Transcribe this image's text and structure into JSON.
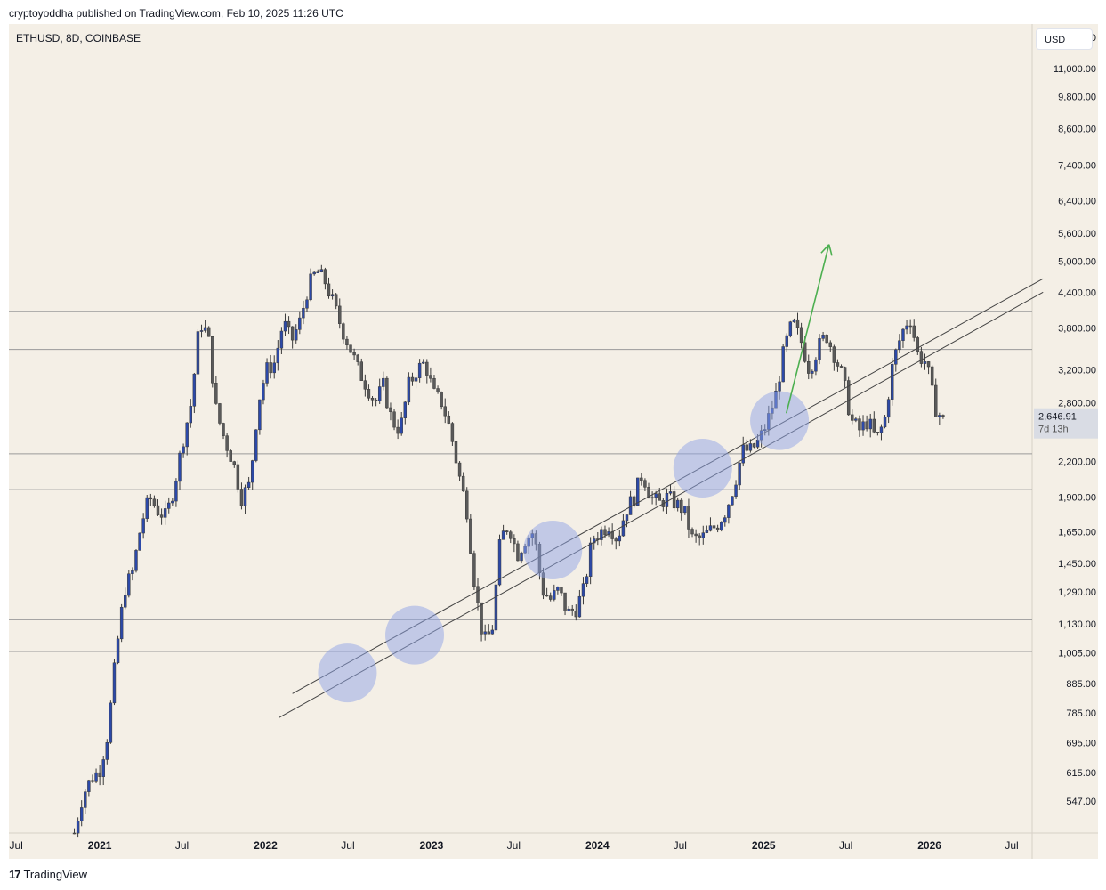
{
  "header": {
    "text": "cryptoyoddha published on TradingView.com, Feb 10, 2025 11:26 UTC"
  },
  "footer": {
    "brand": "TradingView",
    "logo_mark": "17"
  },
  "colors": {
    "background": "#f4efe6",
    "candle": "#2c49a8",
    "level_line": "#9a9a9a",
    "trend_line": "#444444",
    "arrow": "#4caf50",
    "circle_fill": "#8fa4e6"
  },
  "chart_data": {
    "type": "candlestick",
    "symbol_label": "ETHUSD, 8D, COINBASE",
    "currency": "USD",
    "y_scale": "log",
    "ylim": [
      480,
      13200
    ],
    "x_range": [
      "2020-06-15",
      "2026-08-15"
    ],
    "y_ticks": [
      "12,500.00",
      "11,000.00",
      "9,800.00",
      "8,600.00",
      "7,400.00",
      "6,400.00",
      "5,600.00",
      "5,000.00",
      "4,400.00",
      "3,800.00",
      "3,200.00",
      "2,800.00",
      "2,200.00",
      "1,900.00",
      "1,650.00",
      "1,450.00",
      "1,290.00",
      "1,130.00",
      "1,005.00",
      "885.00",
      "785.00",
      "695.00",
      "615.00",
      "547.00"
    ],
    "x_ticks": [
      {
        "date": "2020-07-01",
        "label": "Jul",
        "bold": false
      },
      {
        "date": "2021-01-01",
        "label": "2021",
        "bold": true
      },
      {
        "date": "2021-07-01",
        "label": "Jul",
        "bold": false
      },
      {
        "date": "2022-01-01",
        "label": "2022",
        "bold": true
      },
      {
        "date": "2022-07-01",
        "label": "Jul",
        "bold": false
      },
      {
        "date": "2023-01-01",
        "label": "2023",
        "bold": true
      },
      {
        "date": "2023-07-01",
        "label": "Jul",
        "bold": false
      },
      {
        "date": "2024-01-01",
        "label": "2024",
        "bold": true
      },
      {
        "date": "2024-07-01",
        "label": "Jul",
        "bold": false
      },
      {
        "date": "2025-01-01",
        "label": "2025",
        "bold": true
      },
      {
        "date": "2025-07-01",
        "label": "Jul",
        "bold": false
      },
      {
        "date": "2026-01-01",
        "label": "2026",
        "bold": true
      },
      {
        "date": "2026-07-01",
        "label": "Jul",
        "bold": false
      }
    ],
    "last_price": {
      "value": 2646.91,
      "label": "2,646.91",
      "countdown": "7d 13h"
    },
    "candle_start": "2020-11-06",
    "candle_days": 8,
    "price_path": [
      480,
      560,
      600,
      620,
      720,
      1000,
      1300,
      1400,
      1700,
      1900,
      1800,
      1750,
      2000,
      2400,
      2800,
      3900,
      3700,
      2700,
      2400,
      2200,
      1900,
      2000,
      2800,
      3200,
      3300,
      3900,
      3600,
      3900,
      4500,
      4800,
      4600,
      4200,
      3800,
      3500,
      3200,
      3000,
      2800,
      3000,
      2600,
      2500,
      3000,
      3200,
      3300,
      2900,
      2800,
      2500,
      2100,
      1800,
      1300,
      1050,
      1100,
      1600,
      1700,
      1500,
      1600,
      1650,
      1300,
      1250,
      1300,
      1180,
      1200,
      1300,
      1600,
      1650,
      1700,
      1600,
      1800,
      1900,
      2100,
      1900,
      1850,
      1900,
      1850,
      1800,
      1600,
      1600,
      1650,
      1700,
      1800,
      2000,
      2300,
      2300,
      2400,
      2600,
      2900,
      3500,
      3900,
      3600,
      3200,
      3500,
      3700,
      3400,
      3100,
      2600,
      2500,
      2600,
      2400,
      2600,
      3300,
      3700,
      4000,
      3400,
      3300,
      2750,
      2600
    ],
    "annotations": {
      "horizontal_levels": [
        4070,
        3480,
        2270,
        1960,
        1150,
        1010
      ],
      "trend_lines": [
        {
          "from": [
            "2022-01-30",
            770
          ],
          "to": [
            "2026-09-08",
            4400
          ]
        },
        {
          "from": [
            "2022-03-01",
            850
          ],
          "to": [
            "2026-09-08",
            4650
          ]
        }
      ],
      "circles": [
        {
          "date": "2022-06-30",
          "price": 925
        },
        {
          "date": "2022-11-25",
          "price": 1080
        },
        {
          "date": "2023-09-25",
          "price": 1530
        },
        {
          "date": "2024-08-20",
          "price": 2140
        },
        {
          "date": "2025-02-05",
          "price": 2600
        }
      ],
      "arrow": {
        "from": [
          "2025-02-20",
          2680
        ],
        "to": [
          "2025-05-25",
          5350
        ]
      }
    }
  }
}
